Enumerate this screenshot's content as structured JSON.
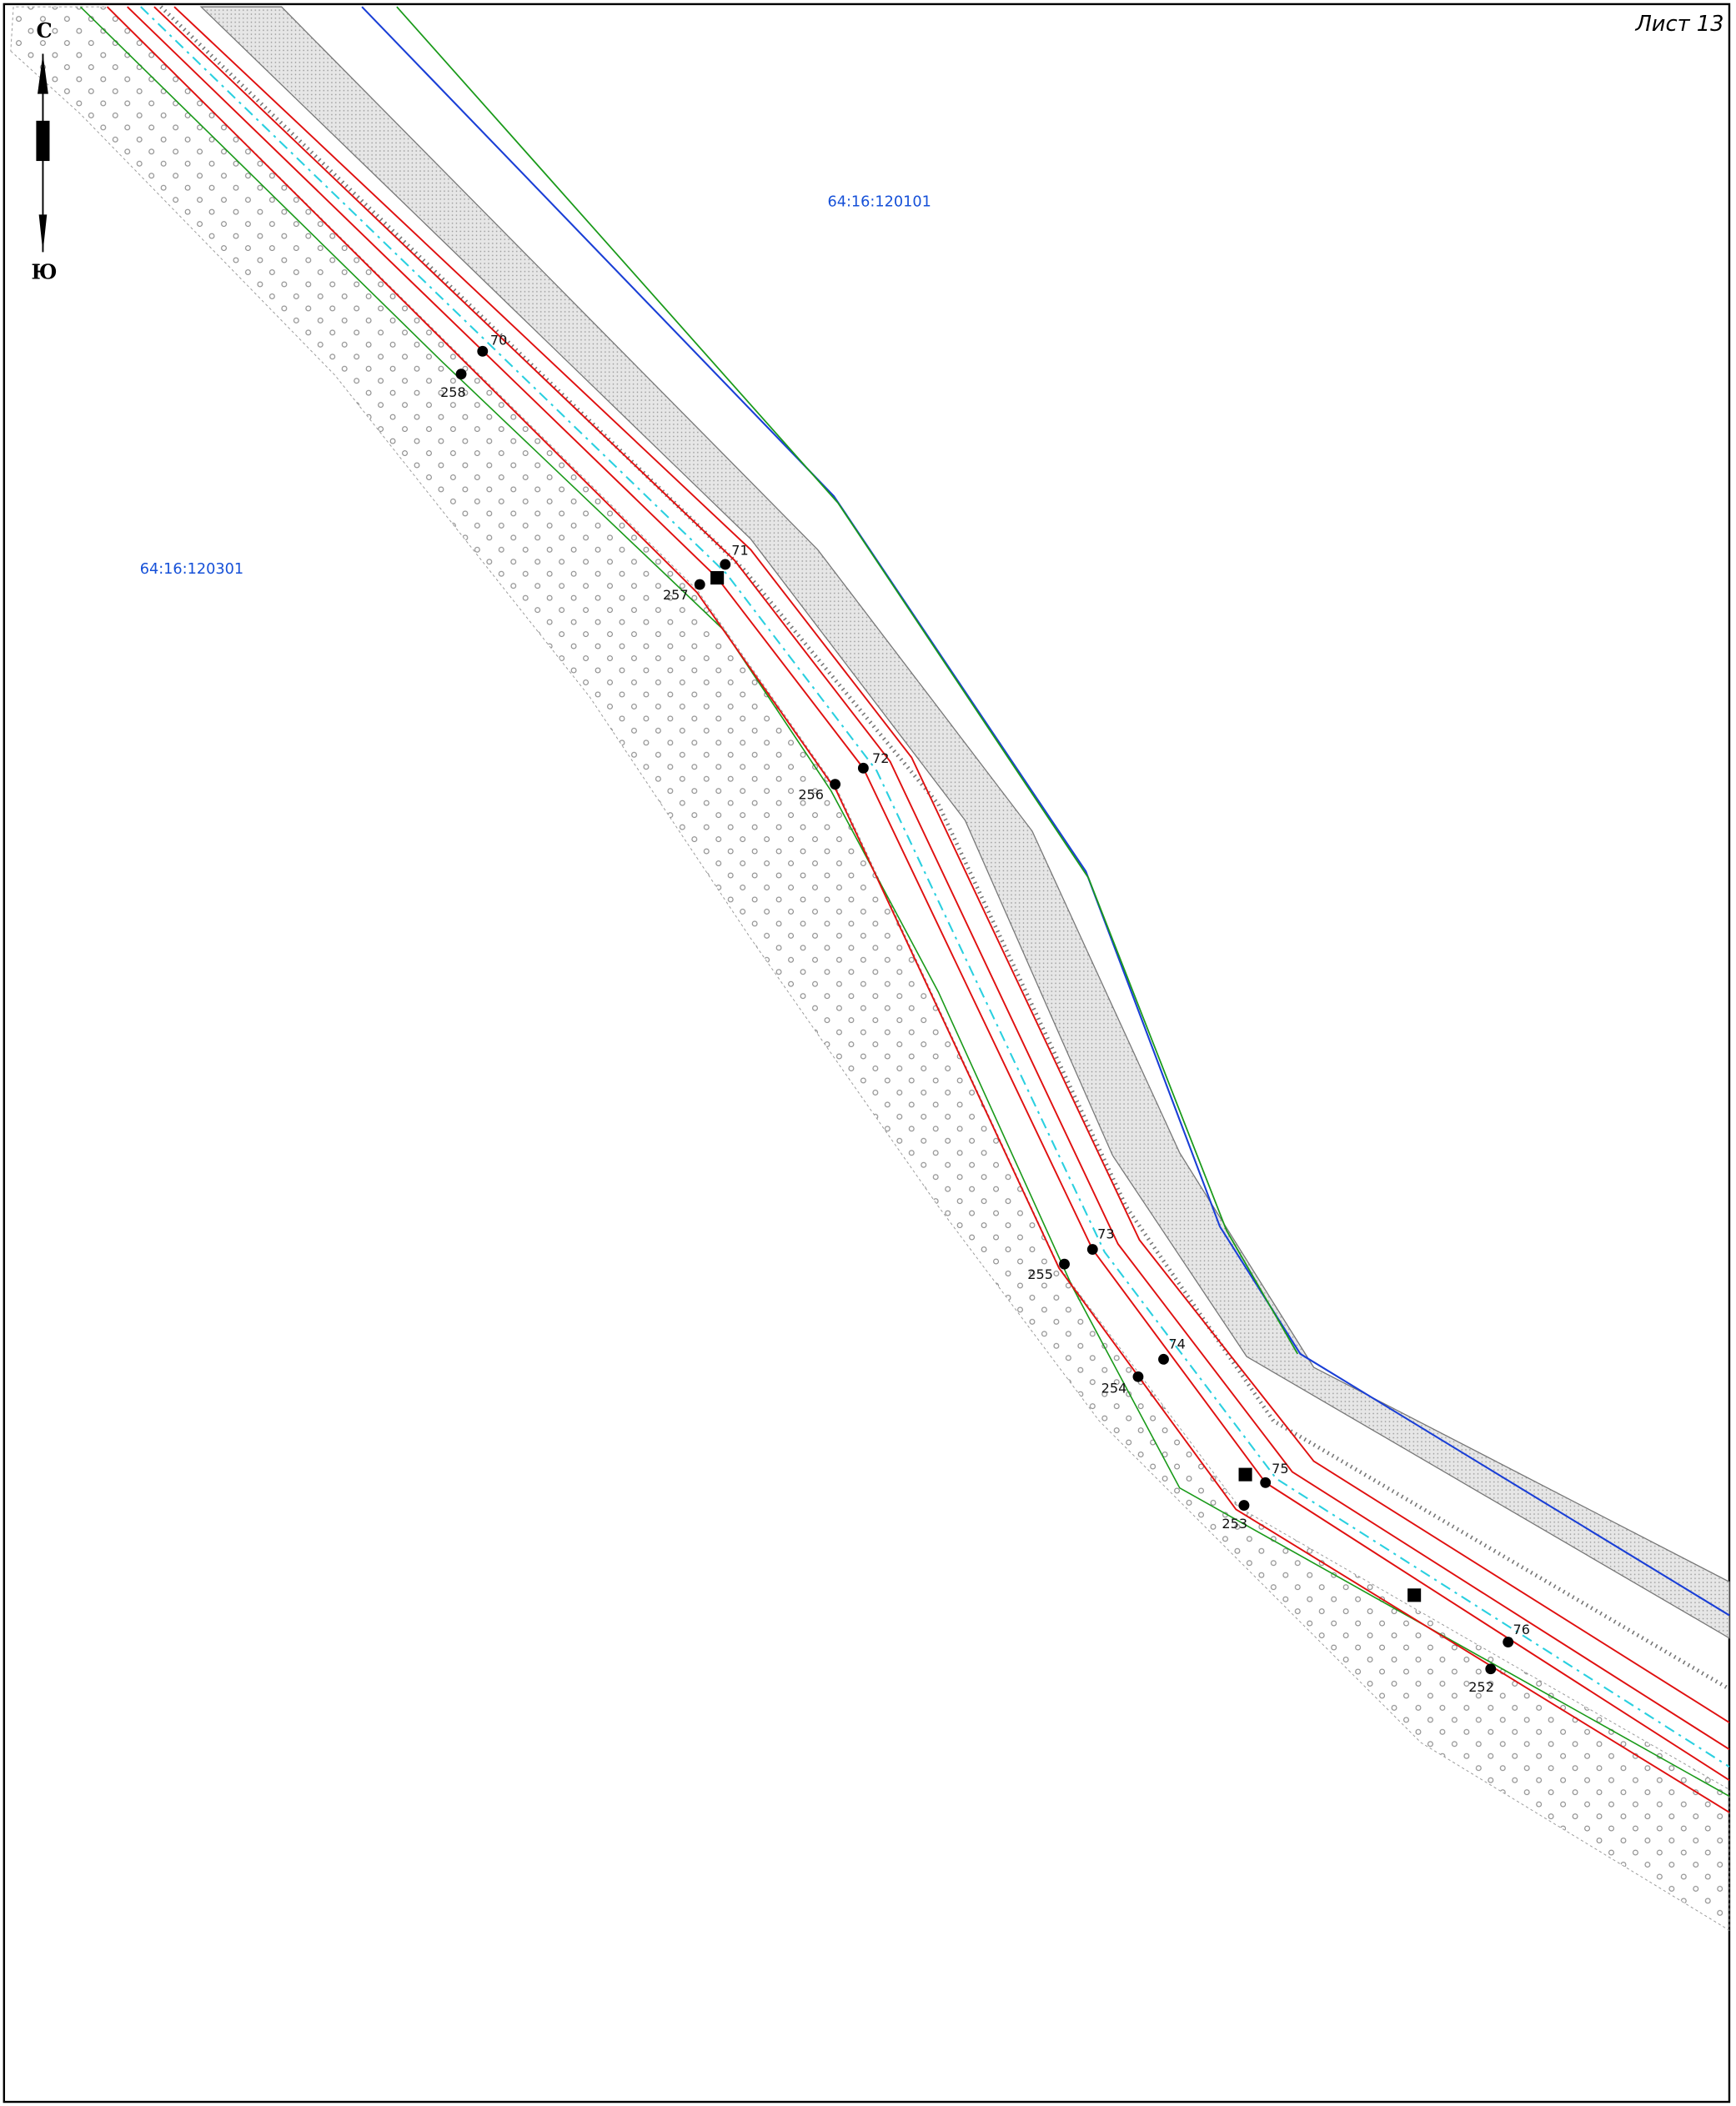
{
  "sheet": "Лист 13",
  "north_arrow": {
    "north": "С",
    "south": "Ю"
  },
  "parcels": [
    "64:16:120101",
    "64:16:120301"
  ],
  "points": [
    {
      "label": "70"
    },
    {
      "label": "258"
    },
    {
      "label": "71"
    },
    {
      "label": "257"
    },
    {
      "label": "72"
    },
    {
      "label": "256"
    },
    {
      "label": "73"
    },
    {
      "label": "255"
    },
    {
      "label": "74"
    },
    {
      "label": "254"
    },
    {
      "label": "75"
    },
    {
      "label": "253"
    },
    {
      "label": "76"
    },
    {
      "label": "252"
    }
  ]
}
